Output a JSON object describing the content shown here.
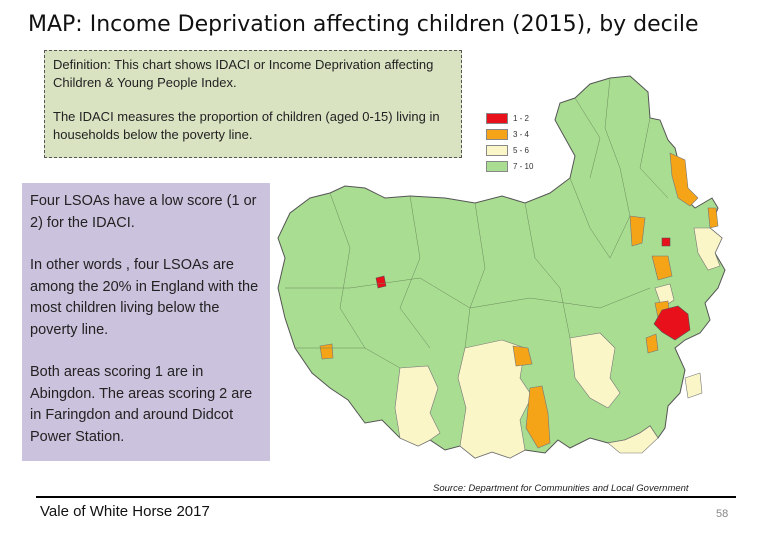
{
  "title": "MAP: Income Deprivation affecting children (2015), by decile",
  "definition": {
    "line1": "Definition: This chart shows IDACI or Income Deprivation affecting Children & Young People Index.",
    "line2": "The IDACI measures the proportion of children (aged 0-15) living in households below the poverty line."
  },
  "summary": {
    "p1": "Four LSOAs have a low score (1 or 2) for the IDACI.",
    "p2": "In other words , four LSOAs are among the 20% in England with the most children living below the poverty line.",
    "p3": "Both areas scoring 1 are in Abingdon.  The areas scoring 2 are in Faringdon and around Didcot Power Station."
  },
  "legend": [
    {
      "label": "1 - 2",
      "color": "#e8101a"
    },
    {
      "label": "3 - 4",
      "color": "#f5a418"
    },
    {
      "label": "5 - 6",
      "color": "#fbf6c8"
    },
    {
      "label": "7 - 10",
      "color": "#a9dd91"
    }
  ],
  "source": "Source: Department for Communities and Local Government",
  "footer": "Vale of White Horse 2017",
  "page_number": "58"
}
